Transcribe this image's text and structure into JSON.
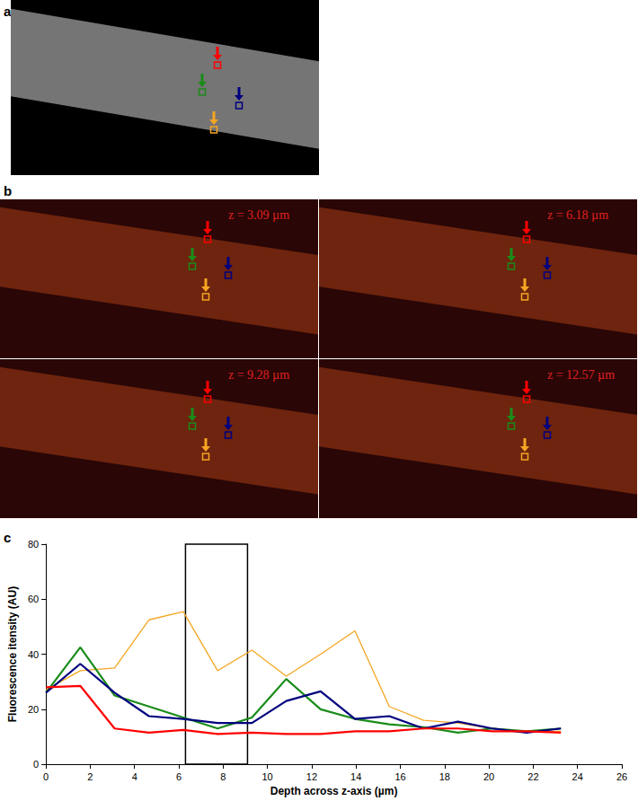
{
  "chart_data": {
    "type": "line",
    "x_label": "Depth across z-axis (µm)",
    "y_label": "Fluorescence itensity (AU)",
    "x": [
      0,
      1.55,
      3.1,
      4.65,
      6.2,
      7.75,
      9.3,
      10.85,
      12.4,
      13.95,
      15.5,
      17.05,
      18.6,
      20.15,
      21.7,
      23.25
    ],
    "series": [
      {
        "color": "#f5a623",
        "values": [
          27,
          34,
          35,
          52.5,
          55.5,
          34,
          41.5,
          32,
          40,
          48.5,
          21,
          16,
          15,
          13,
          12,
          12
        ]
      },
      {
        "color": "#1a8c1a",
        "values": [
          26,
          42.5,
          25,
          21,
          17,
          13,
          17,
          31,
          20,
          16.5,
          14.5,
          13.5,
          11.5,
          13,
          12,
          13
        ]
      },
      {
        "color": "#00007f",
        "values": [
          26,
          36.5,
          26,
          17.5,
          16.5,
          15,
          15,
          23,
          26.5,
          16.5,
          17.5,
          13,
          15.5,
          13,
          11.5,
          13
        ]
      },
      {
        "color": "#ff0000",
        "values": [
          28,
          28.5,
          13,
          11.5,
          12.5,
          11,
          11.5,
          11,
          11,
          12,
          12,
          13,
          13,
          12,
          12,
          11.5
        ]
      }
    ],
    "xlim": [
      0,
      26
    ],
    "xticks": [
      0,
      2,
      4,
      6,
      8,
      10,
      12,
      14,
      16,
      18,
      20,
      22,
      24,
      26
    ],
    "ylim": [
      0,
      80
    ],
    "yticks": [
      0,
      20,
      40,
      60,
      80
    ],
    "highlight": {
      "x": [
        6.3,
        9.1
      ],
      "y": [
        0,
        80
      ]
    },
    "grid": false
  },
  "panel_labels": [
    "a",
    "b",
    "c"
  ],
  "z_labels": [
    "z = 3.09 µm",
    "z = 6.18 µm",
    "z = 9.28 µm",
    "z = 12.57 µm"
  ]
}
